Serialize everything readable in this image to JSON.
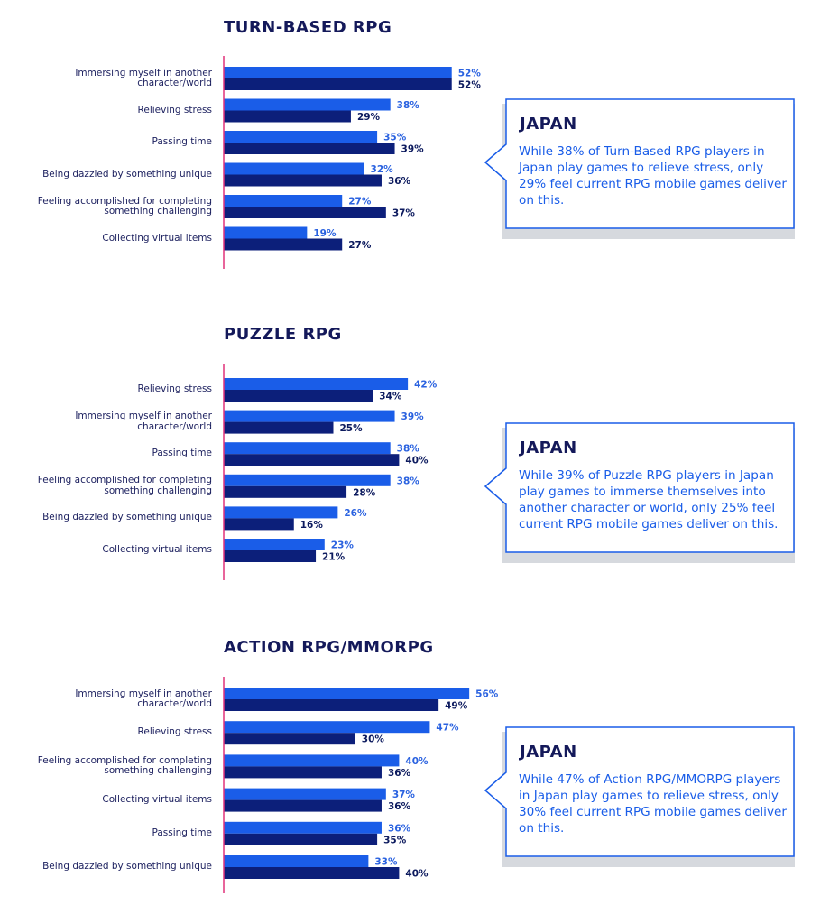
{
  "chart_data": [
    {
      "type": "bar",
      "title": "TURN-BASED RPG",
      "categories": [
        "Immersing myself in another character/world",
        "Relieving stress",
        "Passing time",
        "Being dazzled by something unique",
        "Feeling accomplished for completing something challenging",
        "Collecting virtual items"
      ],
      "series": [
        {
          "color": "#1a5de8",
          "values": [
            52,
            38,
            35,
            32,
            27,
            19
          ],
          "value_labels": [
            "52%",
            "38%",
            "35%",
            "32%",
            "27%",
            "19%"
          ]
        },
        {
          "color": "#0c1f7a",
          "values": [
            52,
            29,
            39,
            36,
            37,
            27
          ],
          "value_labels": [
            "52%",
            "29%",
            "39%",
            "36%",
            "37%",
            "27%"
          ]
        }
      ],
      "annotation": {
        "title": "JAPAN",
        "text": "While 38% of Turn-Based RPG players in Japan play games to relieve stress, only 29% feel current RPG mobile games deliver on this."
      }
    },
    {
      "type": "bar",
      "title": "PUZZLE RPG",
      "categories": [
        "Relieving stress",
        "Immersing myself in another character/world",
        "Passing time",
        "Feeling accomplished for completing something challenging",
        "Being dazzled by something unique",
        "Collecting virtual items"
      ],
      "series": [
        {
          "color": "#1a5de8",
          "values": [
            42,
            39,
            38,
            38,
            26,
            23
          ],
          "value_labels": [
            "42%",
            "39%",
            "38%",
            "38%",
            "26%",
            "23%"
          ]
        },
        {
          "color": "#0c1f7a",
          "values": [
            34,
            25,
            40,
            28,
            16,
            21
          ],
          "value_labels": [
            "34%",
            "25%",
            "40%",
            "28%",
            "16%",
            "21%"
          ]
        }
      ],
      "annotation": {
        "title": "JAPAN",
        "text": "While 39% of Puzzle RPG players in Japan play games to immerse themselves into another character or world, only 25% feel current RPG mobile games deliver on this."
      }
    },
    {
      "type": "bar",
      "title": "ACTION RPG/MMORPG",
      "categories": [
        "Immersing myself in another character/world",
        "Relieving stress",
        "Feeling accomplished for completing something challenging",
        "Collecting virtual items",
        "Passing time",
        "Being dazzled by something unique"
      ],
      "series": [
        {
          "color": "#1a5de8",
          "values": [
            56,
            47,
            40,
            37,
            36,
            33
          ],
          "value_labels": [
            "56%",
            "47%",
            "40%",
            "37%",
            "36%",
            "33%"
          ]
        },
        {
          "color": "#0c1f7a",
          "values": [
            49,
            30,
            36,
            36,
            35,
            40
          ],
          "value_labels": [
            "49%",
            "30%",
            "36%",
            "36%",
            "35%",
            "40%"
          ]
        }
      ],
      "annotation": {
        "title": "JAPAN",
        "text": "While 47% of Action RPG/MMORPG players in Japan play games to relieve stress, only 30% feel current RPG mobile games deliver on this."
      }
    }
  ]
}
